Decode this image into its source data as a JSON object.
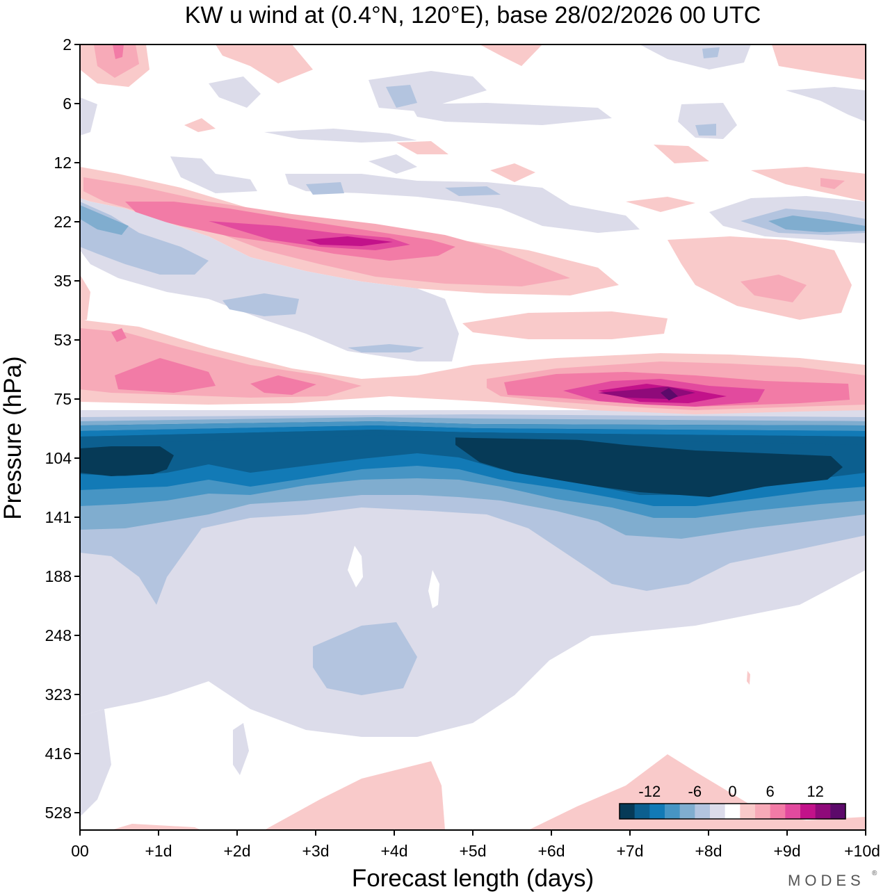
{
  "chart_data": {
    "type": "contour",
    "title": "KW u wind at (0.4°N, 120°E),  base 28/02/2026  00 UTC",
    "xlabel": "Forecast length (days)",
    "ylabel": "Pressure (hPa)",
    "x_ticks": [
      "00",
      "+1d",
      "+2d",
      "+3d",
      "+4d",
      "+5d",
      "+6d",
      "+7d",
      "+8d",
      "+9d",
      "+10d"
    ],
    "xlim": [
      0,
      10
    ],
    "y_ticks": [
      "2",
      "6",
      "12",
      "22",
      "35",
      "53",
      "75",
      "104",
      "141",
      "188",
      "248",
      "323",
      "416",
      "528"
    ],
    "y_scale": "pressure levels, top = 2 hPa",
    "colorbar": {
      "tick_labels": [
        "-12",
        "-6",
        "0",
        "6",
        "12"
      ],
      "colors": [
        "#063a57",
        "#0c5f8f",
        "#127ab6",
        "#4795c4",
        "#80adcf",
        "#b3c4df",
        "#dcdcea",
        "#ffffff",
        "#f9caca",
        "#f7aab8",
        "#f27ba6",
        "#e24a9e",
        "#c2128a",
        "#8f0a7a",
        "#5c0a6a"
      ]
    },
    "features": [
      {
        "label": "strong easterly band (<= -12 m/s)",
        "pressure_hPa": "95-130",
        "days": "0-10"
      },
      {
        "label": "westerly maximum (>= 12 m/s)",
        "pressure_hPa": "70-80",
        "days": "6.5-8"
      },
      {
        "label": "westerly band",
        "pressure_hPa": "20-30",
        "days": "0.5-6"
      },
      {
        "label": "weak easterlies",
        "pressure_hPa": "140-400",
        "days": "0-7"
      }
    ]
  },
  "branding": {
    "logo_text": "MODES",
    "mark": "®"
  }
}
